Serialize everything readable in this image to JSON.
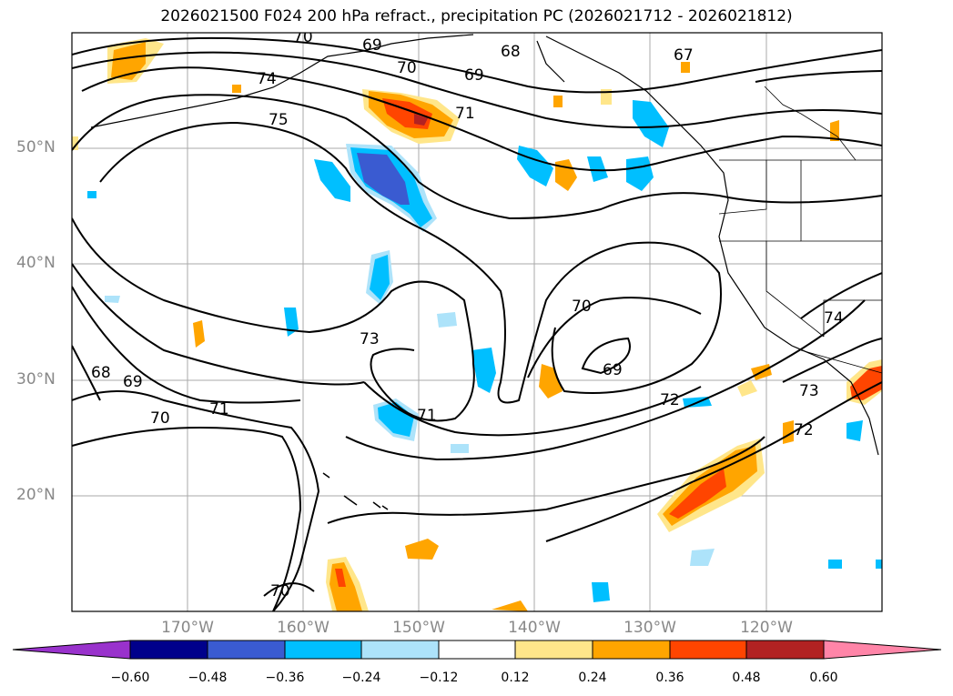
{
  "title": "2026021500 F024 200 hPa refract., precipitation PC (2026021712 - 2026021812)",
  "lat_labels": [
    "50°N",
    "40°N",
    "30°N",
    "20°N"
  ],
  "lon_labels": [
    "170°W",
    "160°W",
    "150°W",
    "140°W",
    "130°W",
    "120°W"
  ],
  "contour_labels": [
    "70",
    "69",
    "68",
    "67",
    "74",
    "70",
    "69",
    "71",
    "75",
    "70",
    "73",
    "69",
    "72",
    "74",
    "73",
    "72",
    "71",
    "71",
    "70",
    "69",
    "68",
    "70"
  ],
  "colorbar": {
    "ticks": [
      "−0.60",
      "−0.48",
      "−0.36",
      "−0.24",
      "−0.12",
      "0.12",
      "0.24",
      "0.36",
      "0.48",
      "0.60"
    ],
    "colors": [
      "#9932CC",
      "#00008B",
      "#3A5BD1",
      "#00BFFF",
      "#ADE3FA",
      "#FFFFFF",
      "#FFE68A",
      "#FFA500",
      "#FF4500",
      "#B22222",
      "#FF85A8"
    ]
  }
}
